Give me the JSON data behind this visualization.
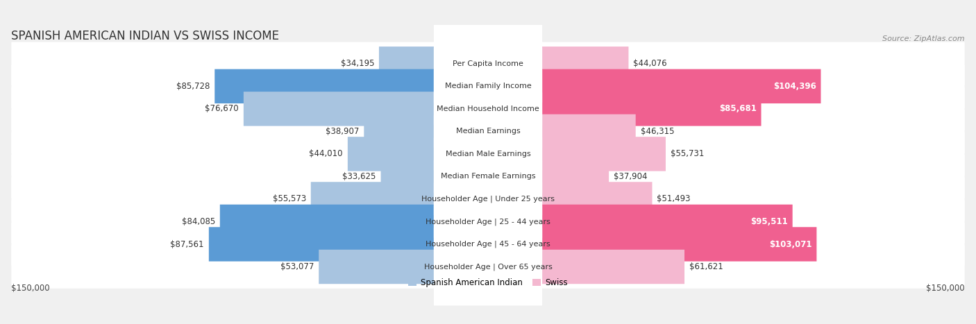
{
  "title": "SPANISH AMERICAN INDIAN VS SWISS INCOME",
  "source": "Source: ZipAtlas.com",
  "categories": [
    "Per Capita Income",
    "Median Family Income",
    "Median Household Income",
    "Median Earnings",
    "Median Male Earnings",
    "Median Female Earnings",
    "Householder Age | Under 25 years",
    "Householder Age | 25 - 44 years",
    "Householder Age | 45 - 64 years",
    "Householder Age | Over 65 years"
  ],
  "left_values": [
    34195,
    85728,
    76670,
    38907,
    44010,
    33625,
    55573,
    84085,
    87561,
    53077
  ],
  "right_values": [
    44076,
    104396,
    85681,
    46315,
    55731,
    37904,
    51493,
    95511,
    103071,
    61621
  ],
  "left_labels": [
    "$34,195",
    "$85,728",
    "$76,670",
    "$38,907",
    "$44,010",
    "$33,625",
    "$55,573",
    "$84,085",
    "$87,561",
    "$53,077"
  ],
  "right_labels": [
    "$44,076",
    "$104,396",
    "$85,681",
    "$46,315",
    "$55,731",
    "$37,904",
    "$51,493",
    "$95,511",
    "$103,071",
    "$61,621"
  ],
  "left_color_normal": "#a8c4e0",
  "left_color_strong": "#5b9bd5",
  "right_color_normal": "#f4b8d0",
  "right_color_strong": "#f06090",
  "strong_threshold": 80000,
  "max_val": 150000,
  "legend_left": "Spanish American Indian",
  "legend_right": "Swiss",
  "xlabel_left": "$150,000",
  "xlabel_right": "$150,000",
  "background_color": "#f0f0f0",
  "row_bg_color": "#ffffff",
  "title_fontsize": 12,
  "source_fontsize": 8,
  "label_fontsize": 8.5,
  "cat_fontsize": 8.0,
  "axis_label_fontsize": 8.5,
  "legend_fontsize": 8.5
}
